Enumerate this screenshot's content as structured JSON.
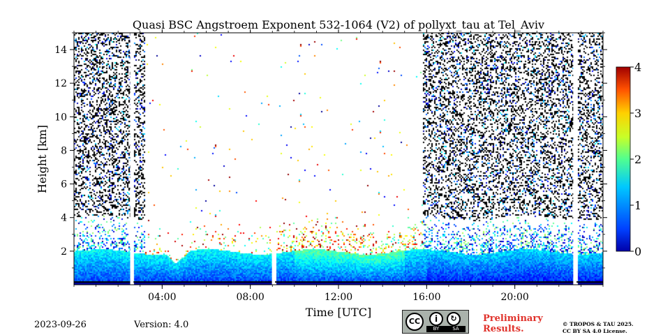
{
  "chart_data": {
    "type": "heatmap",
    "title": "Quasi BSC Angstroem Exponent 532-1064 (V2) of pollyxt_tau at Tel_Aviv",
    "xlabel": "Time [UTC]",
    "ylabel": "Height [km]",
    "xlim_hours": [
      0,
      24
    ],
    "ylim_km": [
      0,
      15
    ],
    "x_ticks": [
      {
        "hour": 4,
        "label": "04:00"
      },
      {
        "hour": 8,
        "label": "08:00"
      },
      {
        "hour": 12,
        "label": "12:00"
      },
      {
        "hour": 16,
        "label": "16:00"
      },
      {
        "hour": 20,
        "label": "20:00"
      }
    ],
    "y_ticks": [
      {
        "value": 2,
        "label": "2"
      },
      {
        "value": 4,
        "label": "4"
      },
      {
        "value": 6,
        "label": "6"
      },
      {
        "value": 8,
        "label": "8"
      },
      {
        "value": 10,
        "label": "10"
      },
      {
        "value": 12,
        "label": "12"
      },
      {
        "value": 14,
        "label": "14"
      }
    ],
    "colorbar": {
      "colormap": "jet",
      "range": [
        0,
        4
      ],
      "ticks": [
        {
          "value": 0,
          "label": "0"
        },
        {
          "value": 1,
          "label": "1"
        },
        {
          "value": 2,
          "label": "2"
        },
        {
          "value": 3,
          "label": "3"
        },
        {
          "value": 4,
          "label": "4"
        }
      ]
    },
    "data_gaps_hours": [
      [
        2.55,
        2.7
      ],
      [
        8.98,
        9.12
      ],
      [
        22.65,
        22.8
      ]
    ],
    "noisy_periods_hours": [
      [
        0,
        3.2
      ],
      [
        15.8,
        24
      ]
    ],
    "boundary_layer_top_km": 2.0,
    "boundary_layer_dip": {
      "hour": 4.6,
      "top_km": 1.3
    }
  },
  "footer": {
    "date": "2023-09-26",
    "version": "Version: 4.0",
    "license_badge": {
      "cc": "CC",
      "by": "BY",
      "sa": "SA"
    },
    "preliminary_line1": "Preliminary",
    "preliminary_line2": "Results.",
    "copyright_line1": "© TROPOS & TAU 2025.",
    "copyright_line2": "CC BY SA 4.0 License."
  }
}
